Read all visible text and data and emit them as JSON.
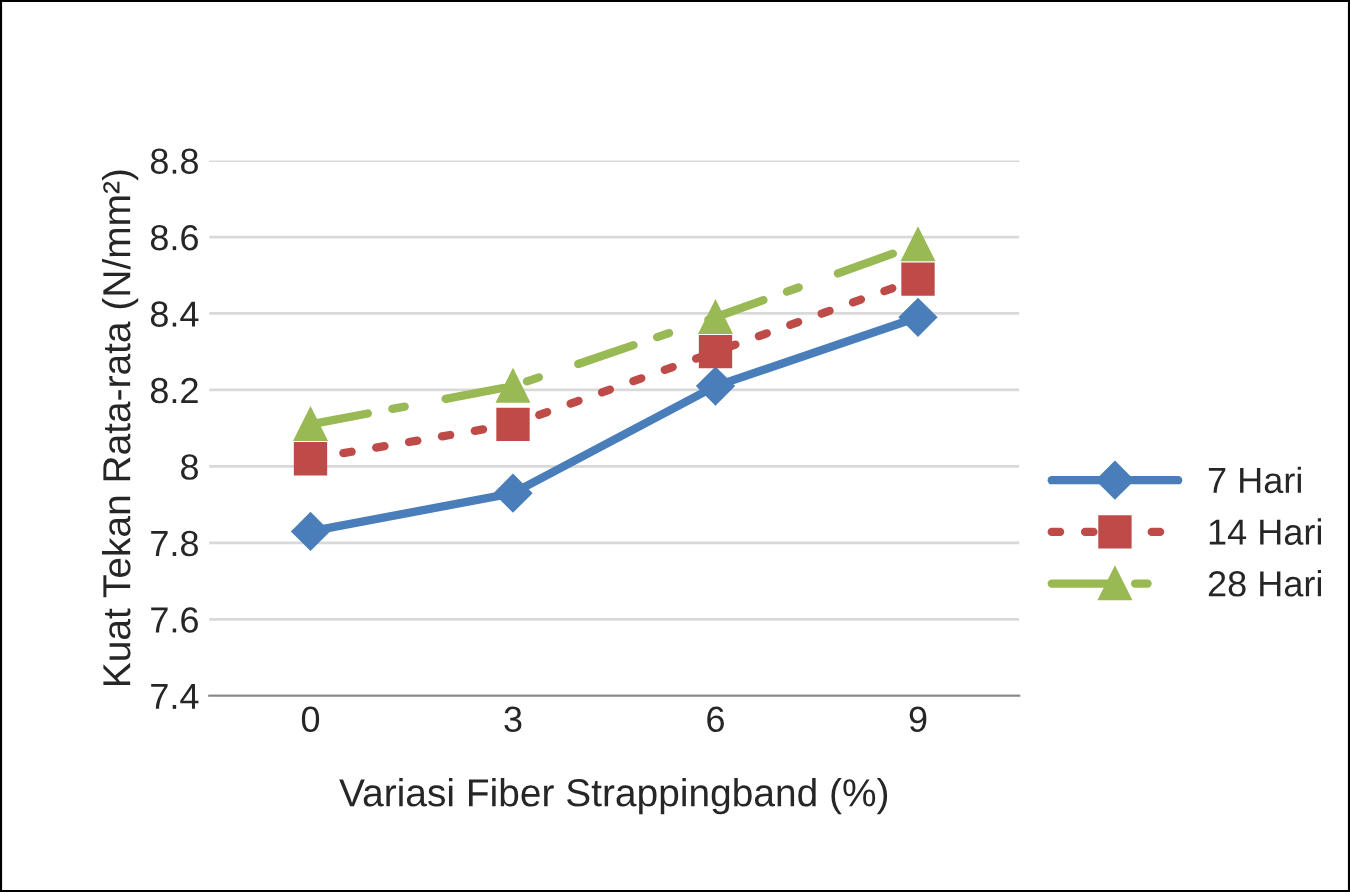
{
  "chart_data": {
    "type": "line",
    "xlabel": "Variasi Fiber Strappingband (%)",
    "ylabel": "Kuat Tekan Rata-rata (N/mm²)",
    "categories": [
      "0",
      "3",
      "6",
      "9"
    ],
    "series": [
      {
        "name": "7 Hari",
        "color": "#4a7ebb",
        "values": [
          7.83,
          7.93,
          8.21,
          8.39
        ],
        "marker": "diamond",
        "line_style": "solid"
      },
      {
        "name": "14 Hari",
        "color": "#be4b48",
        "values": [
          8.02,
          8.11,
          8.3,
          8.49
        ],
        "marker": "square",
        "line_style": "dotted"
      },
      {
        "name": "28 Hari",
        "color": "#98b954",
        "values": [
          8.11,
          8.21,
          8.39,
          8.58
        ],
        "marker": "triangle",
        "line_style": "dashed"
      }
    ],
    "ylim": [
      7.4,
      8.8
    ],
    "yticks": [
      7.4,
      7.6,
      7.8,
      8,
      8.2,
      8.4,
      8.6,
      8.8
    ],
    "grid": "y",
    "legend": "right"
  }
}
